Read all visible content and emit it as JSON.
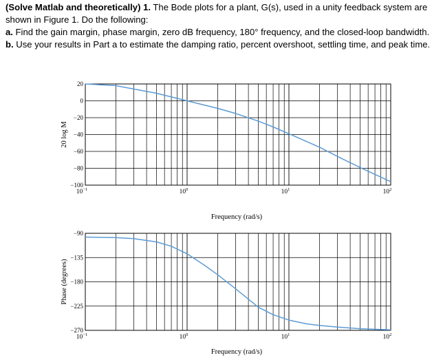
{
  "problem": {
    "header_bold": "(Solve Matlab and theoretically)",
    "header_number": "1.",
    "header_rest": " The Bode plots for a plant, G(s), used in a unity feedback system are shown in Figure 1. Do the following:",
    "part_a_label": "a.",
    "part_a_text": " Find the gain margin, phase margin, zero dB frequency, 180° frequency, and the closed-loop bandwidth.",
    "part_b_label": "b.",
    "part_b_text": " Use your results in Part a to estimate the damping ratio, percent overshoot, settling time, and peak time."
  },
  "chart_data": [
    {
      "type": "line",
      "title": "",
      "xlabel": "Frequency (rad/s)",
      "ylabel": "20 log M",
      "xscale": "log",
      "xlim": [
        0.1,
        100
      ],
      "ylim": [
        -100,
        20
      ],
      "grid": true,
      "x_ticks": [
        {
          "value": 0.1,
          "base": "10",
          "exp": "−1"
        },
        {
          "value": 1,
          "base": "10",
          "exp": "0"
        },
        {
          "value": 10,
          "base": "10",
          "exp": "1"
        },
        {
          "value": 100,
          "base": "10",
          "exp": "2"
        }
      ],
      "y_ticks": [
        "20",
        "0",
        "−20",
        "−40",
        "−60",
        "−80",
        "−100"
      ],
      "y_tick_values": [
        20,
        0,
        -20,
        -40,
        -60,
        -80,
        -100
      ],
      "line_color": "#5b9bd5",
      "series": [
        {
          "x": [
            0.1,
            0.2,
            0.5,
            1,
            2,
            3,
            5,
            7,
            10,
            20,
            30,
            50,
            100
          ],
          "y": [
            20,
            18,
            9,
            0,
            -9,
            -15,
            -24,
            -31,
            -39,
            -55,
            -66,
            -79,
            -96
          ]
        }
      ]
    },
    {
      "type": "line",
      "title": "",
      "xlabel": "Frequency (rad/s)",
      "ylabel": "Phase (degrees)",
      "xscale": "log",
      "xlim": [
        0.1,
        100
      ],
      "ylim": [
        -270,
        -90
      ],
      "grid": true,
      "x_ticks": [
        {
          "value": 0.1,
          "base": "10",
          "exp": "−1"
        },
        {
          "value": 1,
          "base": "10",
          "exp": "0"
        },
        {
          "value": 10,
          "base": "10",
          "exp": "1"
        },
        {
          "value": 100,
          "base": "10",
          "exp": "2"
        }
      ],
      "y_ticks": [
        "−90",
        "−135",
        "−180",
        "−225",
        "−270"
      ],
      "y_tick_values": [
        -90,
        -135,
        -180,
        -225,
        -270
      ],
      "line_color": "#5b9bd5",
      "series": [
        {
          "x": [
            0.1,
            0.2,
            0.3,
            0.5,
            0.7,
            1,
            1.5,
            2,
            3,
            5,
            7,
            10,
            15,
            20,
            30,
            50,
            100
          ],
          "y": [
            -97,
            -98,
            -100,
            -106,
            -114,
            -128,
            -150,
            -167,
            -193,
            -227,
            -241,
            -251,
            -258,
            -261,
            -264,
            -267,
            -269
          ]
        }
      ]
    }
  ]
}
